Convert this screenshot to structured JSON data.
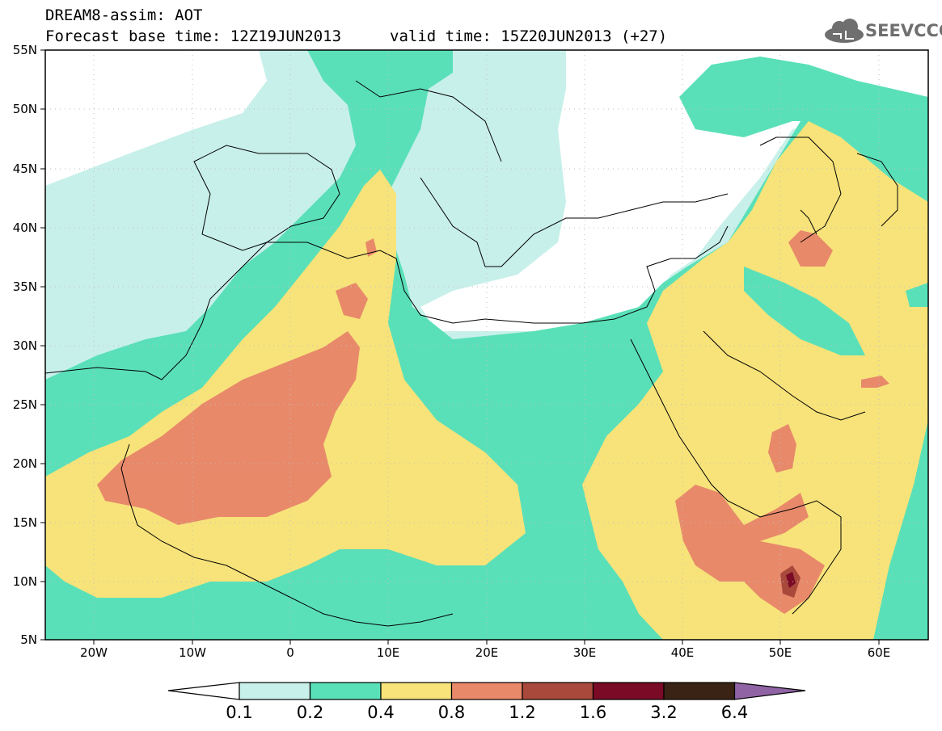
{
  "title": {
    "line1": "DREAM8-assim: AOT",
    "line2": "Forecast base time: 12Z19JUN2013",
    "valid": "valid time: 15Z20JUN2013 (+27)"
  },
  "logo": {
    "text": "SEEVCCC",
    "icon": "cloud-logo-icon"
  },
  "axes": {
    "lat_labels": [
      "55N",
      "50N",
      "45N",
      "40N",
      "35N",
      "30N",
      "25N",
      "20N",
      "15N",
      "10N",
      "5N"
    ],
    "lon_labels": [
      "20W",
      "10W",
      "0",
      "10E",
      "20E",
      "30E",
      "40E",
      "50E",
      "60E"
    ],
    "lat_range": [
      5,
      55
    ],
    "lon_range": [
      -25,
      65
    ]
  },
  "colorbar": {
    "labels": [
      "0.1",
      "0.2",
      "0.4",
      "0.8",
      "1.2",
      "1.6",
      "3.2",
      "6.4"
    ],
    "colors": [
      "#ffffff",
      "#c8f0ea",
      "#5ae0b8",
      "#f7e37a",
      "#e8896a",
      "#a8493b",
      "#7a0a25",
      "#3a2214",
      "#8f63a4"
    ]
  }
}
